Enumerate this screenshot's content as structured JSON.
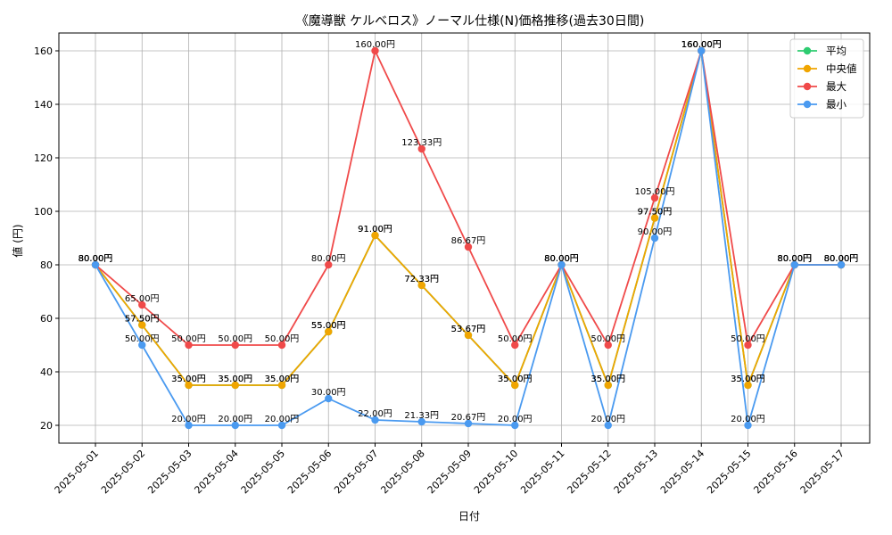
{
  "chart_data": {
    "type": "line",
    "title": "《魔導獣 ケルベロス》ノーマル仕様(N)価格推移(過去30日間)",
    "xlabel": "日付",
    "ylabel": "値 (円)",
    "value_suffix": "円",
    "ylim": [
      13.33,
      166.67
    ],
    "yticks": [
      20,
      40,
      60,
      80,
      100,
      120,
      140,
      160
    ],
    "grid": true,
    "legend_position": "top-right",
    "categories": [
      "2025-05-01",
      "2025-05-02",
      "2025-05-03",
      "2025-05-04",
      "2025-05-05",
      "2025-05-06",
      "2025-05-07",
      "2025-05-08",
      "2025-05-09",
      "2025-05-10",
      "2025-05-11",
      "2025-05-12",
      "2025-05-13",
      "2025-05-14",
      "2025-05-15",
      "2025-05-16",
      "2025-05-17"
    ],
    "series": [
      {
        "name": "平均",
        "color": "#2ecc71",
        "values": [
          80,
          57.5,
          35,
          35,
          35,
          55,
          91,
          72.33,
          53.67,
          35,
          80,
          35,
          97.5,
          160,
          35,
          80,
          80
        ]
      },
      {
        "name": "中央値",
        "color": "#f0a500",
        "values": [
          80,
          57.5,
          35,
          35,
          35,
          55,
          91,
          72.33,
          53.67,
          35,
          80,
          35,
          97.5,
          160,
          35,
          80,
          80
        ]
      },
      {
        "name": "最大",
        "color": "#f04a4a",
        "values": [
          80,
          65,
          50,
          50,
          50,
          80,
          160,
          123.33,
          86.67,
          50,
          80,
          50,
          105,
          160,
          50,
          80,
          80
        ]
      },
      {
        "name": "最小",
        "color": "#4a9af0",
        "values": [
          80,
          50,
          20,
          20,
          20,
          30,
          22,
          21.33,
          20.67,
          20,
          80,
          20,
          90,
          160,
          20,
          80,
          80
        ]
      }
    ]
  }
}
